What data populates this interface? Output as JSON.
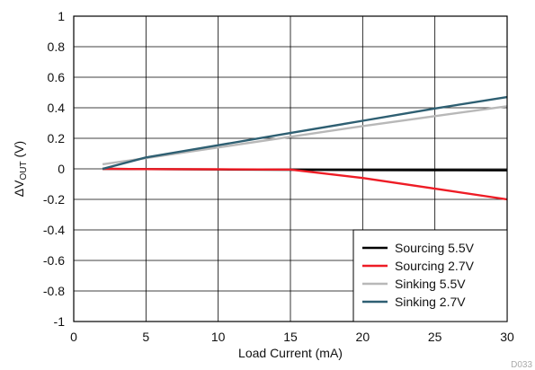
{
  "chart_data": {
    "type": "line",
    "title": "",
    "xlabel": "Load Current (mA)",
    "ylabel_prefix": "ΔV",
    "ylabel_sub": "OUT",
    "ylabel_suffix": " (V)",
    "xlim": [
      0,
      30
    ],
    "ylim": [
      -1,
      1
    ],
    "xticks": [
      0,
      5,
      10,
      15,
      20,
      25,
      30
    ],
    "xtick_labels": [
      "0",
      "5",
      "10",
      "15",
      "20",
      "25",
      "30"
    ],
    "yticks": [
      1,
      0.8,
      0.6,
      0.4,
      0.2,
      0,
      -0.2,
      -0.4,
      -0.6,
      -0.8,
      -1
    ],
    "ytick_labels": [
      "1",
      "0.8",
      "0.6",
      "0.4",
      "0.2",
      "0",
      "-0.2",
      "-0.4",
      "-0.6",
      "-0.8",
      "-1"
    ],
    "grid": true,
    "legend_position": "bottom-right",
    "watermark": "D033",
    "series": [
      {
        "name": "Sourcing 5.5V",
        "color": "#000000",
        "x": [
          2,
          5,
          10,
          15,
          20,
          25,
          30
        ],
        "y": [
          0,
          -0.002,
          -0.004,
          -0.006,
          -0.008,
          -0.009,
          -0.01
        ]
      },
      {
        "name": "Sourcing 2.7V",
        "color": "#ee1c25",
        "x": [
          2,
          5,
          10,
          15,
          20,
          25,
          30
        ],
        "y": [
          0,
          -0.002,
          -0.003,
          -0.005,
          -0.06,
          -0.13,
          -0.2
        ]
      },
      {
        "name": "Sinking 5.5V",
        "color": "#b8b8b8",
        "x": [
          2,
          5,
          10,
          15,
          20,
          25,
          30
        ],
        "y": [
          0.03,
          0.07,
          0.14,
          0.21,
          0.28,
          0.345,
          0.41
        ]
      },
      {
        "name": "Sinking 2.7V",
        "color": "#2e5f72",
        "x": [
          2,
          5,
          10,
          15,
          20,
          25,
          30
        ],
        "y": [
          0,
          0.075,
          0.155,
          0.235,
          0.315,
          0.395,
          0.47
        ]
      }
    ]
  }
}
